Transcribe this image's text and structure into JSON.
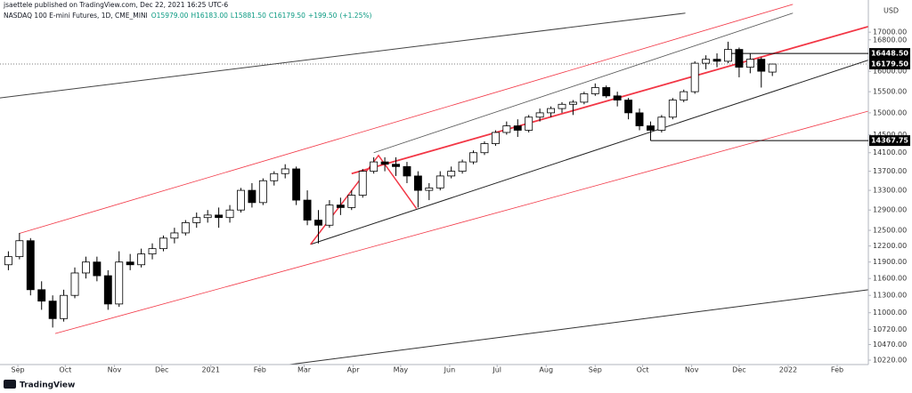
{
  "chart_data": {
    "type": "candlestick",
    "publisher_line": "jsaettele published on TradingView.com, Dec 22, 2021 16:25 UTC-6",
    "title": "NASDAQ 100 E-mini Futures, 1D, CME_MINI",
    "ohlc_summary": [
      "O15979.00",
      "H16183.00",
      "L15881.50",
      "C16179.50",
      "+199.50",
      "(+1.25%)"
    ],
    "currency": "USD",
    "logo": "TradingView",
    "log_scale": true,
    "up_color": "#ffffff",
    "down_color": "#000000",
    "x": [
      -6,
      1,
      8,
      15,
      22,
      29,
      36,
      43,
      50,
      57,
      64,
      71,
      78,
      85,
      92,
      99,
      106,
      113,
      120,
      127,
      134,
      141,
      148,
      155,
      162,
      169,
      176,
      183,
      190,
      197,
      204,
      211,
      218,
      225,
      232,
      239,
      246,
      253,
      260,
      267,
      274,
      281,
      288,
      295,
      302,
      309,
      316,
      323,
      330,
      337,
      344,
      351,
      358,
      365,
      372,
      379,
      386,
      393,
      400,
      407,
      414,
      421,
      428,
      435,
      442,
      449,
      456,
      463,
      470,
      477
    ],
    "open": [
      11850,
      12000,
      12300,
      11400,
      11200,
      10900,
      11300,
      11700,
      11900,
      11650,
      11150,
      11900,
      11850,
      12050,
      12150,
      12350,
      12450,
      12650,
      12750,
      12800,
      12750,
      12900,
      13300,
      13050,
      13500,
      13650,
      13750,
      13100,
      12700,
      12600,
      13000,
      12950,
      13200,
      13700,
      13900,
      13850,
      13800,
      13600,
      13300,
      13350,
      13600,
      13700,
      13900,
      14100,
      14300,
      14550,
      14700,
      14600,
      14900,
      15000,
      15100,
      15200,
      15250,
      15450,
      15600,
      15400,
      15300,
      15000,
      14700,
      14600,
      14900,
      15300,
      15500,
      16200,
      16300,
      16250,
      16550,
      16100,
      16300,
      15979
    ],
    "high": [
      12100,
      12450,
      12350,
      11550,
      11300,
      11400,
      11800,
      12000,
      12000,
      11750,
      12100,
      12050,
      12150,
      12250,
      12400,
      12550,
      12700,
      12850,
      12900,
      12950,
      13000,
      13350,
      13450,
      13550,
      13700,
      13850,
      13800,
      13300,
      12900,
      13100,
      13150,
      13300,
      13750,
      14000,
      14000,
      14000,
      13900,
      13700,
      13450,
      13700,
      13800,
      13950,
      14150,
      14350,
      14600,
      14800,
      14850,
      14950,
      15100,
      15150,
      15250,
      15300,
      15500,
      15700,
      15650,
      15500,
      15350,
      15100,
      14800,
      14950,
      15350,
      15550,
      16250,
      16400,
      16450,
      16750,
      16600,
      16450,
      16350,
      16183
    ],
    "low": [
      11750,
      11950,
      11300,
      11050,
      10750,
      10850,
      11250,
      11600,
      11550,
      11050,
      11100,
      11750,
      11800,
      11950,
      12100,
      12250,
      12400,
      12550,
      12650,
      12550,
      12650,
      12850,
      12950,
      13000,
      13400,
      13550,
      13000,
      12600,
      12250,
      12550,
      12800,
      12900,
      13150,
      13650,
      13700,
      13600,
      13450,
      12950,
      13100,
      13300,
      13550,
      13650,
      13850,
      14050,
      14250,
      14500,
      14450,
      14550,
      14800,
      14900,
      15000,
      14950,
      15200,
      15400,
      15350,
      15150,
      14850,
      14600,
      14367.75,
      14550,
      14850,
      15250,
      15450,
      16050,
      16100,
      16200,
      15850,
      15950,
      15600,
      15881.5
    ],
    "close": [
      12000,
      12300,
      11400,
      11200,
      10900,
      11300,
      11700,
      11900,
      11650,
      11150,
      11900,
      11850,
      12050,
      12150,
      12350,
      12450,
      12650,
      12750,
      12800,
      12750,
      12900,
      13300,
      13050,
      13500,
      13650,
      13750,
      13100,
      12700,
      12600,
      13000,
      12950,
      13200,
      13700,
      13900,
      13850,
      13800,
      13600,
      13300,
      13350,
      13600,
      13700,
      13900,
      14100,
      14300,
      14550,
      14700,
      14600,
      14900,
      15000,
      15100,
      15200,
      15250,
      15450,
      15600,
      15400,
      15300,
      15000,
      14700,
      14600,
      14900,
      15300,
      15500,
      16200,
      16300,
      16250,
      16550,
      16100,
      16300,
      16000,
      16179.5
    ],
    "xlim": [
      -11.3,
      537.7
    ],
    "xticks": [
      {
        "value": 0,
        "label": "Sep"
      },
      {
        "value": 30,
        "label": "Oct"
      },
      {
        "value": 61,
        "label": "Nov"
      },
      {
        "value": 91,
        "label": "Dec"
      },
      {
        "value": 122,
        "label": "2021"
      },
      {
        "value": 153,
        "label": "Feb"
      },
      {
        "value": 181,
        "label": "Mar"
      },
      {
        "value": 212,
        "label": "Apr"
      },
      {
        "value": 242,
        "label": "May"
      },
      {
        "value": 273,
        "label": "Jun"
      },
      {
        "value": 303,
        "label": "Jul"
      },
      {
        "value": 334,
        "label": "Aug"
      },
      {
        "value": 365,
        "label": "Sep"
      },
      {
        "value": 395,
        "label": "Oct"
      },
      {
        "value": 426,
        "label": "Nov"
      },
      {
        "value": 456,
        "label": "Dec"
      },
      {
        "value": 487,
        "label": "2022"
      },
      {
        "value": 518,
        "label": "Feb"
      }
    ],
    "ylim": [
      10150,
      17870
    ],
    "yticks": [
      {
        "value": 17000,
        "label": "17000.00"
      },
      {
        "value": 16800,
        "label": "16800.00"
      },
      {
        "value": 16000,
        "label": "16000.00"
      },
      {
        "value": 15500,
        "label": "15500.00"
      },
      {
        "value": 15000,
        "label": "15000.00"
      },
      {
        "value": 14500,
        "label": "14500.00"
      },
      {
        "value": 14100,
        "label": "14100.00"
      },
      {
        "value": 13700,
        "label": "13700.00"
      },
      {
        "value": 13300,
        "label": "13300.00"
      },
      {
        "value": 12900,
        "label": "12900.00"
      },
      {
        "value": 12500,
        "label": "12500.00"
      },
      {
        "value": 12200,
        "label": "12200.00"
      },
      {
        "value": 11900,
        "label": "11900.00"
      },
      {
        "value": 11600,
        "label": "11600.00"
      },
      {
        "value": 11300,
        "label": "11300.00"
      },
      {
        "value": 11000,
        "label": "11000.00"
      },
      {
        "value": 10720,
        "label": "10720.00"
      },
      {
        "value": 10470,
        "label": "10470.00"
      },
      {
        "value": 10220,
        "label": "10220.00"
      }
    ],
    "last_price": {
      "value": 16179.5,
      "label": "16179.50"
    },
    "price_levels": [
      {
        "value": 16448.5,
        "label": "16448.50",
        "from": 451
      },
      {
        "value": 14367.75,
        "label": "14367.75",
        "from": 400
      }
    ],
    "trendlines": [
      {
        "color": "#444444",
        "width": 1,
        "points": [
          [
            -11.3,
            15350
          ],
          [
            422,
            17510
          ]
        ]
      },
      {
        "color": "#f23645",
        "width": 0.8,
        "points": [
          [
            1,
            12440
          ],
          [
            490,
            17750
          ]
        ]
      },
      {
        "color": "#f23645",
        "width": 0.8,
        "points": [
          [
            23.6,
            10650
          ],
          [
            537.7,
            15040
          ]
        ]
      },
      {
        "color": "#f23645",
        "width": 1.8,
        "points": [
          [
            211,
            13650
          ],
          [
            537.7,
            17150
          ]
        ]
      },
      {
        "color": "#555555",
        "width": 0.8,
        "points": [
          [
            225,
            14100
          ],
          [
            490,
            17510
          ]
        ]
      },
      {
        "color": "#222222",
        "width": 1,
        "points": [
          [
            185,
            12230
          ],
          [
            537.7,
            16280
          ]
        ]
      },
      {
        "color": "#333333",
        "width": 1,
        "points": [
          [
            171.7,
            10150
          ],
          [
            537.7,
            11400
          ]
        ]
      },
      {
        "color": "#f23645",
        "width": 1.5,
        "points": [
          [
            185,
            12230
          ],
          [
            228,
            14040
          ],
          [
            252,
            12930
          ]
        ]
      }
    ]
  }
}
